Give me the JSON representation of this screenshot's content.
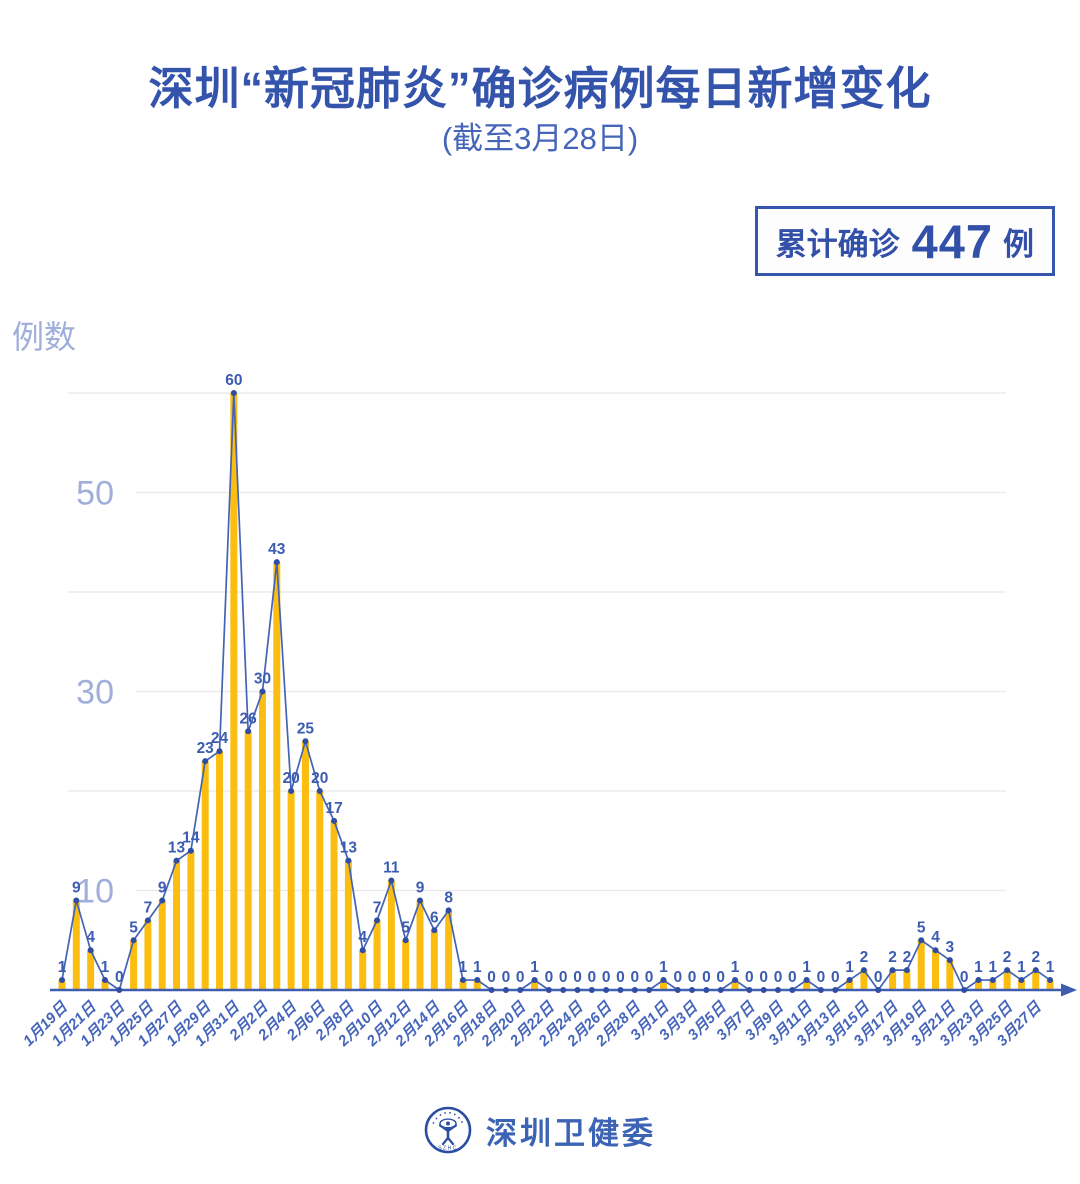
{
  "header": {
    "title": "深圳“新冠肺炎”确诊病例每日新增变化",
    "subtitle": "(截至3月28日)",
    "badge": {
      "prefix": "累计确诊",
      "number": "447",
      "suffix": "例"
    }
  },
  "footer": {
    "org_name": "深圳卫健委",
    "logo_text": "SZHC"
  },
  "chart_data": {
    "type": "bar",
    "line_overlay": true,
    "title": "深圳“新冠肺炎”确诊病例每日新增变化",
    "subtitle": "(截至3月28日)",
    "ylabel": "例数",
    "xlabel": "",
    "ylim": [
      0,
      62
    ],
    "gridline_values": [
      10,
      20,
      30,
      40,
      50,
      60
    ],
    "ytick_labeled_values": [
      10,
      30,
      50
    ],
    "legend": "none",
    "x_tick_labels": [
      "1月19日",
      "1月21日",
      "1月23日",
      "1月25日",
      "1月27日",
      "1月29日",
      "1月31日",
      "2月2日",
      "2月4日",
      "2月6日",
      "2月8日",
      "2月10日",
      "2月12日",
      "2月14日",
      "2月16日",
      "2月18日",
      "2月20日",
      "2月22日",
      "2月24日",
      "2月26日",
      "2月28日",
      "3月1日",
      "3月3日",
      "3月5日",
      "3月7日",
      "3月9日",
      "3月11日",
      "3月13日",
      "3月15日",
      "3月17日",
      "3月19日",
      "3月21日",
      "3月23日",
      "3月25日",
      "3月27日"
    ],
    "points_per_tick_label": 2,
    "values": [
      1,
      9,
      4,
      1,
      0,
      5,
      7,
      9,
      13,
      14,
      23,
      24,
      60,
      26,
      30,
      43,
      20,
      25,
      20,
      17,
      13,
      4,
      7,
      11,
      5,
      9,
      6,
      8,
      1,
      1,
      0,
      0,
      0,
      1,
      0,
      0,
      0,
      0,
      0,
      0,
      0,
      0,
      1,
      0,
      0,
      0,
      0,
      1,
      0,
      0,
      0,
      0,
      1,
      0,
      0,
      1,
      2,
      0,
      2,
      2,
      5,
      4,
      3,
      0,
      1,
      1,
      2,
      1,
      2,
      1
    ],
    "cumulative_total": 447,
    "colors": {
      "bar": "#FBBE10",
      "line": "#4363B5",
      "marker": "#2E4DA3",
      "data_label": "#3B5CB0",
      "y_tick_label": "#9FAEDB",
      "x_tick_label": "#4565BB",
      "grid": "#E8E8E8",
      "axis": "#3E5DB0",
      "title": "#3453AB",
      "badge": "#3350A8"
    }
  }
}
